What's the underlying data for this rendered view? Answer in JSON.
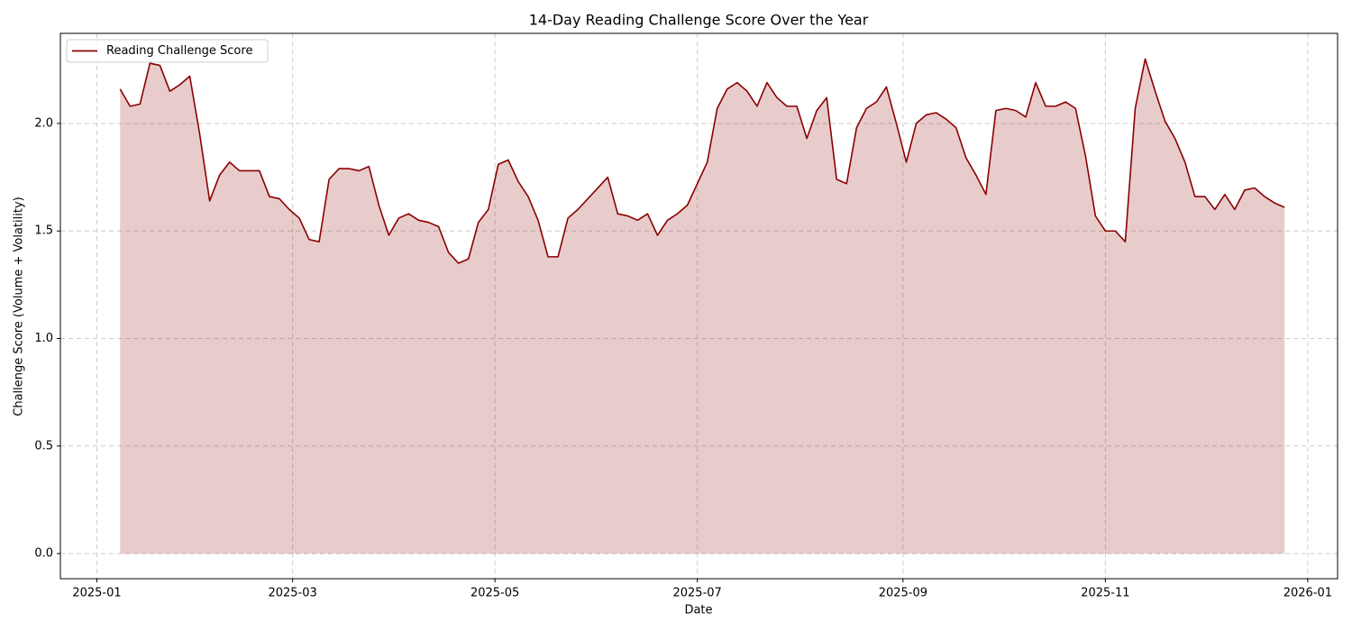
{
  "chart_data": {
    "type": "area",
    "title": "14-Day Reading Challenge Score Over the Year",
    "xlabel": "Date",
    "ylabel": "Challenge Score (Volume + Volatility)",
    "x": [
      "2025-01-08",
      "2025-01-11",
      "2025-01-14",
      "2025-01-17",
      "2025-01-20",
      "2025-01-23",
      "2025-01-26",
      "2025-01-29",
      "2025-02-01",
      "2025-02-04",
      "2025-02-07",
      "2025-02-10",
      "2025-02-13",
      "2025-02-16",
      "2025-02-19",
      "2025-02-22",
      "2025-02-25",
      "2025-02-28",
      "2025-03-03",
      "2025-03-06",
      "2025-03-09",
      "2025-03-12",
      "2025-03-15",
      "2025-03-18",
      "2025-03-21",
      "2025-03-24",
      "2025-03-27",
      "2025-03-30",
      "2025-04-02",
      "2025-04-05",
      "2025-04-08",
      "2025-04-11",
      "2025-04-14",
      "2025-04-17",
      "2025-04-20",
      "2025-04-23",
      "2025-04-26",
      "2025-04-29",
      "2025-05-02",
      "2025-05-05",
      "2025-05-08",
      "2025-05-11",
      "2025-05-14",
      "2025-05-17",
      "2025-05-20",
      "2025-05-23",
      "2025-05-26",
      "2025-05-29",
      "2025-06-01",
      "2025-06-04",
      "2025-06-07",
      "2025-06-10",
      "2025-06-13",
      "2025-06-16",
      "2025-06-19",
      "2025-06-22",
      "2025-06-25",
      "2025-06-28",
      "2025-07-01",
      "2025-07-04",
      "2025-07-07",
      "2025-07-10",
      "2025-07-13",
      "2025-07-16",
      "2025-07-19",
      "2025-07-22",
      "2025-07-25",
      "2025-07-28",
      "2025-07-31",
      "2025-08-03",
      "2025-08-06",
      "2025-08-09",
      "2025-08-12",
      "2025-08-15",
      "2025-08-18",
      "2025-08-21",
      "2025-08-24",
      "2025-08-27",
      "2025-08-30",
      "2025-09-02",
      "2025-09-05",
      "2025-09-08",
      "2025-09-11",
      "2025-09-14",
      "2025-09-17",
      "2025-09-20",
      "2025-09-23",
      "2025-09-26",
      "2025-09-29",
      "2025-10-02",
      "2025-10-05",
      "2025-10-08",
      "2025-10-11",
      "2025-10-14",
      "2025-10-17",
      "2025-10-20",
      "2025-10-23",
      "2025-10-26",
      "2025-10-29",
      "2025-11-01",
      "2025-11-04",
      "2025-11-07",
      "2025-11-10",
      "2025-11-13",
      "2025-11-16",
      "2025-11-19",
      "2025-11-22",
      "2025-11-25",
      "2025-11-28",
      "2025-12-01",
      "2025-12-04",
      "2025-12-07",
      "2025-12-10",
      "2025-12-13",
      "2025-12-16",
      "2025-12-19",
      "2025-12-22",
      "2025-12-25"
    ],
    "series": [
      {
        "name": "Reading Challenge Score",
        "color": "#8b0000",
        "values": [
          2.16,
          2.08,
          2.09,
          2.28,
          2.27,
          2.15,
          2.18,
          2.22,
          1.95,
          1.64,
          1.76,
          1.82,
          1.78,
          1.78,
          1.78,
          1.66,
          1.65,
          1.6,
          1.56,
          1.46,
          1.45,
          1.74,
          1.79,
          1.79,
          1.78,
          1.8,
          1.62,
          1.48,
          1.56,
          1.58,
          1.55,
          1.54,
          1.52,
          1.4,
          1.35,
          1.37,
          1.54,
          1.6,
          1.81,
          1.83,
          1.73,
          1.66,
          1.55,
          1.38,
          1.38,
          1.56,
          1.6,
          1.65,
          1.7,
          1.75,
          1.58,
          1.57,
          1.55,
          1.58,
          1.48,
          1.55,
          1.58,
          1.62,
          1.72,
          1.82,
          2.07,
          2.16,
          2.19,
          2.15,
          2.08,
          2.19,
          2.12,
          2.08,
          2.08,
          1.93,
          2.06,
          2.12,
          1.74,
          1.72,
          1.98,
          2.07,
          2.1,
          2.17,
          2.0,
          1.82,
          2.0,
          2.04,
          2.05,
          2.02,
          1.98,
          1.84,
          1.76,
          1.67,
          2.06,
          2.07,
          2.06,
          2.03,
          2.19,
          2.08,
          2.08,
          2.1,
          2.07,
          1.85,
          1.57,
          1.5,
          1.5,
          1.45,
          2.07,
          2.3,
          2.15,
          2.01,
          1.93,
          1.82,
          1.66,
          1.66,
          1.6,
          1.67,
          1.6,
          1.69,
          1.7,
          1.66,
          1.63,
          1.61
        ]
      }
    ],
    "xlim": [
      "2024-12-21",
      "2026-01-10"
    ],
    "ylim": [
      -0.117,
      2.419
    ],
    "xticks": [
      {
        "value": "2025-01-01",
        "label": "2025-01"
      },
      {
        "value": "2025-03-01",
        "label": "2025-03"
      },
      {
        "value": "2025-05-01",
        "label": "2025-05"
      },
      {
        "value": "2025-07-01",
        "label": "2025-07"
      },
      {
        "value": "2025-09-01",
        "label": "2025-09"
      },
      {
        "value": "2025-11-01",
        "label": "2025-11"
      },
      {
        "value": "2026-01-01",
        "label": "2026-01"
      }
    ],
    "yticks": [
      {
        "value": 0,
        "label": "0.0"
      },
      0.5,
      {
        "value": 1,
        "label": "1.0"
      },
      1.5,
      {
        "value": 2,
        "label": "2.0"
      }
    ],
    "grid": true,
    "legend": "upper left"
  }
}
